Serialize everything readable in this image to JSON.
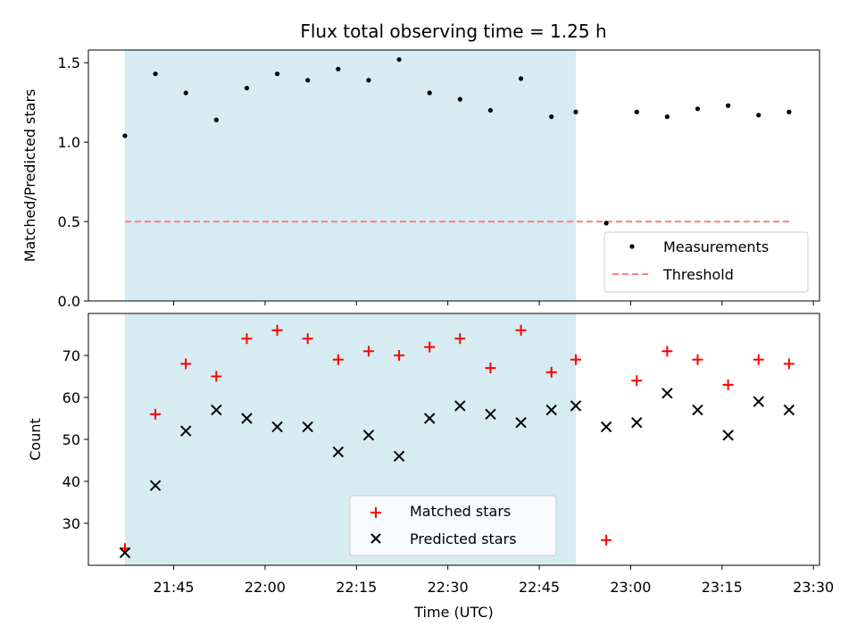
{
  "title": "Flux total observing time = 1.25 h",
  "colors": {
    "measurement": "#000000",
    "threshold": "#ff7f7f",
    "matched": "#ff0000",
    "predicted": "#000000",
    "shade": "#add8e6"
  },
  "chart_data": [
    {
      "type": "scatter",
      "ylabel": "Matched/Predicted stars",
      "ylim": [
        0.0,
        1.58
      ],
      "yticks": [
        0.0,
        0.5,
        1.0,
        1.5
      ],
      "ytick_labels": [
        "0.0",
        "0.5",
        "1.0",
        "1.5"
      ],
      "shaded_time_range": [
        "21:37",
        "22:51"
      ],
      "legend_position": "lower-right",
      "series": [
        {
          "name": "Measurements",
          "marker": "dot",
          "x": [
            "21:37",
            "21:42",
            "21:47",
            "21:52",
            "21:57",
            "22:02",
            "22:07",
            "22:12",
            "22:17",
            "22:22",
            "22:27",
            "22:32",
            "22:37",
            "22:42",
            "22:47",
            "22:51",
            "22:56",
            "23:01",
            "23:06",
            "23:11",
            "23:16",
            "23:21",
            "23:26"
          ],
          "y": [
            1.04,
            1.43,
            1.31,
            1.14,
            1.34,
            1.43,
            1.39,
            1.46,
            1.39,
            1.52,
            1.31,
            1.27,
            1.2,
            1.4,
            1.16,
            1.19,
            0.49,
            1.19,
            1.16,
            1.21,
            1.23,
            1.17,
            1.19
          ]
        },
        {
          "name": "Threshold",
          "style": "dashed-line",
          "x": [
            "21:37",
            "23:26"
          ],
          "y": [
            0.5,
            0.5
          ]
        }
      ]
    },
    {
      "type": "scatter",
      "xlabel": "Time (UTC)",
      "ylabel": "Count",
      "ylim": [
        20.0,
        80.0
      ],
      "yticks": [
        30,
        40,
        50,
        60,
        70
      ],
      "ytick_labels": [
        "30",
        "40",
        "50",
        "60",
        "70"
      ],
      "xlim": [
        "21:31",
        "23:31"
      ],
      "xticks": [
        "21:45",
        "22:00",
        "22:15",
        "22:30",
        "22:45",
        "23:00",
        "23:15",
        "23:30"
      ],
      "shaded_time_range": [
        "21:37",
        "22:51"
      ],
      "legend_position": "lower-center",
      "series": [
        {
          "name": "Matched stars",
          "marker": "plus",
          "x": [
            "21:37",
            "21:42",
            "21:47",
            "21:52",
            "21:57",
            "22:02",
            "22:07",
            "22:12",
            "22:17",
            "22:22",
            "22:27",
            "22:32",
            "22:37",
            "22:42",
            "22:47",
            "22:51",
            "22:56",
            "23:01",
            "23:06",
            "23:11",
            "23:16",
            "23:21",
            "23:26"
          ],
          "y": [
            24,
            56,
            68,
            65,
            74,
            76,
            74,
            69,
            71,
            70,
            72,
            74,
            67,
            76,
            66,
            69,
            26,
            64,
            71,
            69,
            63,
            69,
            68
          ]
        },
        {
          "name": "Predicted stars",
          "marker": "x",
          "x": [
            "21:37",
            "21:42",
            "21:47",
            "21:52",
            "21:57",
            "22:02",
            "22:07",
            "22:12",
            "22:17",
            "22:22",
            "22:27",
            "22:32",
            "22:37",
            "22:42",
            "22:47",
            "22:51",
            "22:56",
            "23:01",
            "23:06",
            "23:11",
            "23:16",
            "23:21",
            "23:26"
          ],
          "y": [
            23,
            39,
            52,
            57,
            55,
            53,
            53,
            47,
            51,
            46,
            55,
            58,
            56,
            54,
            57,
            58,
            53,
            54,
            61,
            57,
            51,
            59,
            57
          ]
        }
      ]
    }
  ]
}
